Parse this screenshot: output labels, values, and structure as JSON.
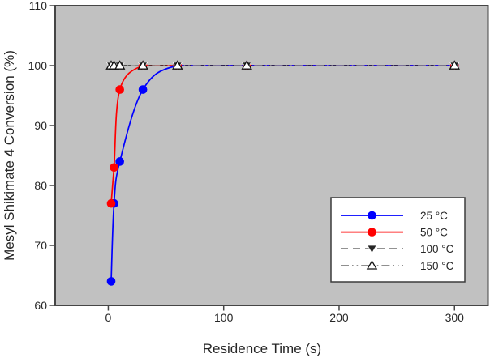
{
  "figure": {
    "plot_bg": "#c1c1c1",
    "frame_color": "#454545",
    "tick_color": "#454545",
    "text_color": "#262626",
    "legend_bg": "#ffffff",
    "legend_border": "#3c3c3c"
  },
  "chart_data": {
    "type": "line",
    "title": "",
    "xlabel": "Residence Time (s)",
    "ylabel": "Mesyl Shikimate 4 Conversion (%)",
    "ylabel_prefix": "Mesyl Shikimate ",
    "ylabel_bold": "4",
    "ylabel_suffix": " Conversion (%)",
    "xlim": [
      -46,
      329
    ],
    "ylim": [
      60,
      110
    ],
    "x_ticks": [
      0,
      100,
      200,
      300
    ],
    "y_ticks": [
      60,
      70,
      80,
      90,
      100,
      110
    ],
    "grid": false,
    "legend_position": "lower-right",
    "series": [
      {
        "name": "25 °C",
        "color": "#0000ff",
        "line_style": "solid",
        "marker": "filled-circle",
        "x": [
          2.5,
          5,
          10,
          30,
          60,
          120,
          300
        ],
        "y": [
          64,
          77,
          84,
          96,
          100,
          100,
          100
        ]
      },
      {
        "name": "50 °C",
        "color": "#ff0000",
        "line_style": "solid",
        "marker": "filled-circle",
        "x": [
          2.5,
          5,
          10,
          30,
          60,
          120,
          300
        ],
        "y": [
          77,
          83,
          96,
          100,
          100,
          100,
          100
        ]
      },
      {
        "name": "100 °C",
        "color": "#262626",
        "line_style": "dashed",
        "marker": "filled-triangle-down",
        "x": [
          2.5,
          5,
          10,
          30,
          60,
          120,
          300
        ],
        "y": [
          100,
          100,
          100,
          100,
          100,
          100,
          100
        ]
      },
      {
        "name": "150 °C",
        "color": "#8f8f8f",
        "line_style": "dash-dot-dot",
        "marker": "open-triangle-up",
        "x": [
          2.5,
          5,
          10,
          30,
          60,
          120,
          300
        ],
        "y": [
          100,
          100,
          100,
          100,
          100,
          100,
          100
        ]
      }
    ]
  }
}
